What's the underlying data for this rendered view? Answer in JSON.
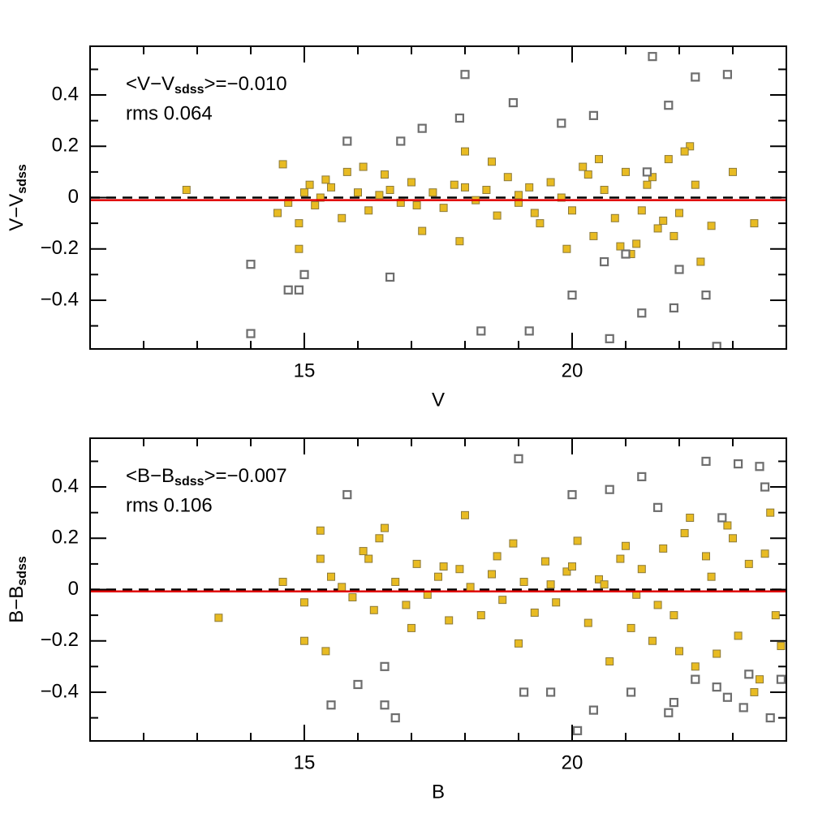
{
  "chart_data": [
    {
      "type": "scatter",
      "x_label": "V",
      "y_label": {
        "main": "V−V",
        "sub": "sdss"
      },
      "annotation": {
        "prefix": "<V−V",
        "sub": "sdss",
        "suffix": ">=−0.010"
      },
      "mean": -0.01,
      "rms_label": "rms 0.064",
      "xlim": [
        11,
        24
      ],
      "ylim": [
        -0.59,
        0.59
      ],
      "xticks": [
        15,
        20
      ],
      "yticks": [
        {
          "value": -0.4,
          "label": "−0.4"
        },
        {
          "value": -0.2,
          "label": "−0.2"
        },
        0,
        0.2,
        0.4
      ],
      "xminorticks": [
        12,
        13,
        14,
        16,
        17,
        18,
        19,
        21,
        22,
        23
      ],
      "yminorticks": [
        -0.5,
        -0.3,
        -0.1,
        0.1,
        0.3,
        0.5
      ],
      "series": [
        {
          "color": "#e8bb22",
          "marker": "filled",
          "x": [
            12.8,
            14.5,
            14.6,
            14.7,
            14.9,
            15.0,
            15.1,
            15.2,
            15.3,
            15.5,
            15.7,
            15.8,
            16.0,
            16.2,
            16.4,
            16.6,
            16.8,
            17.0,
            17.2,
            17.4,
            17.6,
            17.8,
            18.0,
            18.2,
            18.4,
            18.6,
            18.8,
            19.0,
            19.2,
            19.4,
            19.6,
            19.8,
            20.0,
            20.2,
            20.4,
            20.6,
            20.8,
            21.0,
            21.2,
            21.4,
            21.6,
            21.8,
            22.0,
            22.2,
            22.4,
            14.9,
            15.4,
            16.1,
            17.1,
            17.9,
            18.5,
            19.3,
            19.9,
            20.5,
            21.1,
            21.5,
            21.9,
            22.3,
            20.9,
            21.7,
            22.1,
            22.6,
            23.0,
            23.4,
            19.0,
            18.0,
            16.5,
            21.3,
            22.0,
            20.3
          ],
          "values": [
            0.03,
            -0.06,
            0.13,
            -0.02,
            -0.2,
            0.02,
            0.05,
            -0.03,
            0.0,
            0.04,
            -0.08,
            0.1,
            0.02,
            -0.05,
            0.01,
            0.03,
            -0.02,
            0.06,
            -0.13,
            0.02,
            -0.04,
            0.05,
            0.18,
            -0.01,
            0.03,
            -0.07,
            0.08,
            -0.02,
            0.04,
            -0.1,
            0.06,
            0.0,
            -0.05,
            0.12,
            -0.15,
            0.03,
            -0.08,
            0.1,
            -0.18,
            0.05,
            -0.12,
            0.15,
            -0.06,
            0.2,
            -0.25,
            -0.1,
            0.07,
            0.12,
            -0.03,
            -0.17,
            0.14,
            -0.06,
            -0.2,
            0.15,
            -0.22,
            0.08,
            -0.15,
            0.05,
            -0.19,
            -0.09,
            0.18,
            -0.11,
            0.1,
            -0.1,
            0.01,
            0.04,
            0.09,
            -0.05,
            -0.28,
            0.09
          ]
        },
        {
          "color": "#6e6e6e",
          "marker": "open",
          "x": [
            14.0,
            14.0,
            14.7,
            14.9,
            15.0,
            15.8,
            16.6,
            16.8,
            17.2,
            17.9,
            18.0,
            18.3,
            18.9,
            19.2,
            19.8,
            20.0,
            20.4,
            20.7,
            21.0,
            21.3,
            21.5,
            21.8,
            22.0,
            22.3,
            22.5,
            22.7,
            22.9,
            21.9,
            20.6,
            21.4
          ],
          "values": [
            -0.53,
            -0.26,
            -0.36,
            -0.36,
            -0.3,
            0.22,
            -0.31,
            0.22,
            0.27,
            0.31,
            0.48,
            -0.52,
            0.37,
            -0.52,
            0.29,
            -0.38,
            0.32,
            -0.55,
            -0.22,
            -0.45,
            0.55,
            0.36,
            -0.28,
            0.47,
            -0.38,
            -0.58,
            0.48,
            -0.43,
            -0.25,
            0.1
          ]
        }
      ]
    },
    {
      "type": "scatter",
      "x_label": "B",
      "y_label": {
        "main": "B−B",
        "sub": "sdss"
      },
      "annotation": {
        "prefix": "<B−B",
        "sub": "sdss",
        "suffix": ">=−0.007"
      },
      "mean": -0.007,
      "rms_label": "rms 0.106",
      "xlim": [
        11,
        24
      ],
      "ylim": [
        -0.59,
        0.59
      ],
      "xticks": [
        15,
        20
      ],
      "yticks": [
        {
          "value": -0.4,
          "label": "−0.4"
        },
        {
          "value": -0.2,
          "label": "−0.2"
        },
        0,
        0.2,
        0.4
      ],
      "xminorticks": [
        12,
        13,
        14,
        16,
        17,
        18,
        19,
        21,
        22,
        23
      ],
      "yminorticks": [
        -0.5,
        -0.3,
        -0.1,
        0.1,
        0.3,
        0.5
      ],
      "series": [
        {
          "color": "#e8bb22",
          "marker": "filled",
          "x": [
            13.4,
            14.6,
            15.0,
            15.0,
            15.3,
            15.4,
            15.5,
            15.7,
            15.9,
            16.1,
            16.3,
            16.5,
            16.7,
            16.9,
            17.1,
            17.3,
            17.5,
            17.7,
            17.9,
            18.1,
            18.3,
            18.5,
            18.7,
            18.9,
            19.1,
            19.3,
            19.5,
            19.7,
            19.9,
            20.1,
            20.3,
            20.5,
            20.7,
            20.9,
            21.1,
            21.3,
            21.5,
            21.7,
            21.9,
            22.1,
            22.3,
            22.5,
            22.7,
            22.9,
            23.1,
            23.3,
            23.5,
            23.7,
            23.9,
            16.2,
            17.0,
            18.0,
            19.0,
            20.0,
            21.0,
            22.0,
            23.0,
            23.8,
            22.6,
            23.4,
            21.6,
            20.6,
            18.6,
            17.6,
            16.4,
            15.3,
            22.2,
            23.6,
            19.6,
            21.2
          ],
          "values": [
            -0.11,
            0.03,
            -0.05,
            -0.2,
            0.23,
            -0.24,
            0.05,
            0.01,
            -0.03,
            0.15,
            -0.08,
            0.24,
            0.03,
            -0.06,
            0.1,
            -0.02,
            0.05,
            -0.12,
            0.08,
            0.01,
            -0.1,
            0.06,
            -0.04,
            0.18,
            0.03,
            -0.09,
            0.11,
            -0.05,
            0.07,
            0.19,
            -0.13,
            0.04,
            -0.28,
            0.12,
            -0.15,
            0.08,
            -0.2,
            0.16,
            -0.1,
            0.22,
            -0.3,
            0.13,
            -0.25,
            0.25,
            -0.18,
            0.1,
            -0.35,
            0.3,
            -0.22,
            0.12,
            -0.15,
            0.29,
            -0.21,
            0.09,
            0.17,
            -0.24,
            0.2,
            -0.1,
            0.05,
            -0.4,
            -0.06,
            0.02,
            0.13,
            0.09,
            0.2,
            0.12,
            0.28,
            0.14,
            0.02,
            -0.02
          ]
        },
        {
          "color": "#6e6e6e",
          "marker": "open",
          "x": [
            15.5,
            15.8,
            16.0,
            16.5,
            16.7,
            19.0,
            19.1,
            19.6,
            20.0,
            20.1,
            20.7,
            21.1,
            21.3,
            21.6,
            21.9,
            22.3,
            22.5,
            22.7,
            22.9,
            23.1,
            23.3,
            23.5,
            23.7,
            23.9,
            23.2,
            22.8,
            23.6,
            21.8,
            20.4,
            16.5
          ],
          "values": [
            -0.45,
            0.37,
            -0.37,
            -0.45,
            -0.5,
            0.51,
            -0.4,
            -0.4,
            0.37,
            -0.55,
            0.39,
            -0.4,
            0.44,
            0.32,
            -0.44,
            -0.35,
            0.5,
            -0.38,
            -0.42,
            0.49,
            -0.33,
            0.48,
            -0.5,
            -0.35,
            -0.46,
            0.28,
            0.4,
            -0.48,
            -0.47,
            -0.3
          ]
        }
      ]
    }
  ]
}
